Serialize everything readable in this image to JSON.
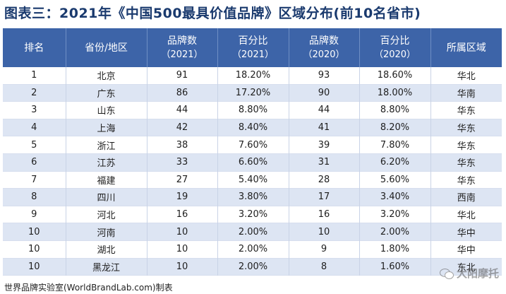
{
  "title": "图表三：2021年《中国500最具价值品牌》区域分布(前10名省市)",
  "headers": [
    {
      "line1": "排名",
      "line2": ""
    },
    {
      "line1": "省份/地区",
      "line2": ""
    },
    {
      "line1": "品牌数",
      "line2": "（2021）"
    },
    {
      "line1": "百分比",
      "line2": "（2021）"
    },
    {
      "line1": "品牌数",
      "line2": "（2020）"
    },
    {
      "line1": "百分比",
      "line2": "（2020）"
    },
    {
      "line1": "所属区域",
      "line2": ""
    }
  ],
  "rows": [
    {
      "rank": "1",
      "province": "北京",
      "count_2021": "91",
      "pct_2021": "18.20%",
      "count_2020": "93",
      "pct_2020": "18.60%",
      "region": "华北"
    },
    {
      "rank": "2",
      "province": "广东",
      "count_2021": "86",
      "pct_2021": "17.20%",
      "count_2020": "90",
      "pct_2020": "18.00%",
      "region": "华南"
    },
    {
      "rank": "3",
      "province": "山东",
      "count_2021": "44",
      "pct_2021": "8.80%",
      "count_2020": "44",
      "pct_2020": "8.80%",
      "region": "华东"
    },
    {
      "rank": "4",
      "province": "上海",
      "count_2021": "42",
      "pct_2021": "8.40%",
      "count_2020": "41",
      "pct_2020": "8.20%",
      "region": "华东"
    },
    {
      "rank": "5",
      "province": "浙江",
      "count_2021": "38",
      "pct_2021": "7.60%",
      "count_2020": "39",
      "pct_2020": "7.80%",
      "region": "华东"
    },
    {
      "rank": "6",
      "province": "江苏",
      "count_2021": "33",
      "pct_2021": "6.60%",
      "count_2020": "31",
      "pct_2020": "6.20%",
      "region": "华东"
    },
    {
      "rank": "7",
      "province": "福建",
      "count_2021": "27",
      "pct_2021": "5.40%",
      "count_2020": "28",
      "pct_2020": "5.60%",
      "region": "华东"
    },
    {
      "rank": "8",
      "province": "四川",
      "count_2021": "19",
      "pct_2021": "3.80%",
      "count_2020": "17",
      "pct_2020": "3.40%",
      "region": "西南"
    },
    {
      "rank": "9",
      "province": "河北",
      "count_2021": "16",
      "pct_2021": "3.20%",
      "count_2020": "16",
      "pct_2020": "3.20%",
      "region": "华北"
    },
    {
      "rank": "10",
      "province": "河南",
      "count_2021": "10",
      "pct_2021": "2.00%",
      "count_2020": "10",
      "pct_2020": "2.00%",
      "region": "华中"
    },
    {
      "rank": "10",
      "province": "湖北",
      "count_2021": "10",
      "pct_2021": "2.00%",
      "count_2020": "9",
      "pct_2020": "1.80%",
      "region": "华中"
    },
    {
      "rank": "10",
      "province": "黑龙江",
      "count_2021": "10",
      "pct_2021": "2.00%",
      "count_2020": "8",
      "pct_2020": "1.60%",
      "region": "东北"
    }
  ],
  "footer": "世界品牌实验室(WorldBrandLab.com)制表",
  "watermark": "大阳摩托"
}
